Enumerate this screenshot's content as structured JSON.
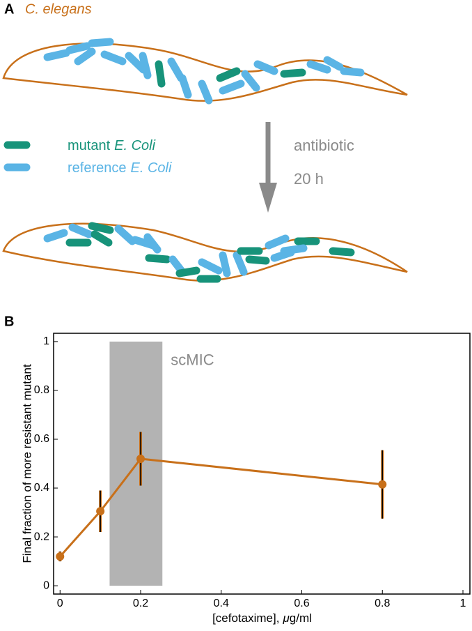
{
  "panel_a": {
    "label": "A",
    "worm_label": "C. elegans",
    "legend": [
      {
        "parts": [
          "mutant",
          "E. Coli"
        ]
      },
      {
        "parts": [
          "reference",
          "E. Coli"
        ]
      }
    ],
    "treatment": [
      "antibiotic",
      "20 h"
    ]
  },
  "panel_b": {
    "label": "B"
  },
  "chart_data": {
    "type": "line",
    "x_label_parts": [
      {
        "text": "[cefotaxime],"
      },
      {
        "text": "μ",
        "italic": true
      },
      {
        "text": "g/ml"
      }
    ],
    "y_label": "Final fraction of more resistant mutant",
    "x": [
      0,
      0.1,
      0.2,
      0.8
    ],
    "values": [
      0.12,
      0.305,
      0.52,
      0.415
    ],
    "errors": [
      0.02,
      0.085,
      0.11,
      0.14
    ],
    "color": "#c8701a",
    "shade": {
      "range": [
        0.123,
        0.254
      ],
      "label": "scMIC",
      "color": "#b3b3b3"
    },
    "xlim": [
      -0.016,
      1.019
    ],
    "ylim": [
      -0.034,
      1.034
    ],
    "xticks": [
      0,
      0.2,
      0.4,
      0.6,
      0.8,
      1
    ],
    "yticks": [
      0,
      0.2,
      0.4,
      0.6,
      0.8,
      1
    ]
  }
}
